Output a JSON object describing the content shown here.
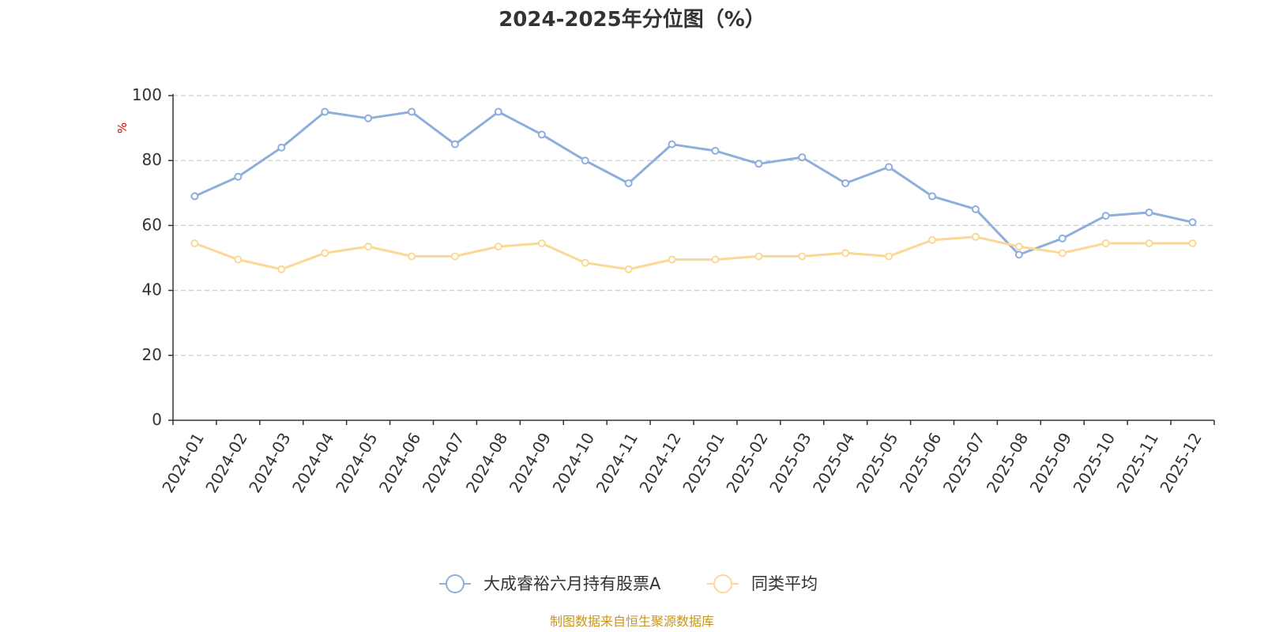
{
  "chart_data": {
    "type": "line",
    "title": "2024-2025年分位图（%）",
    "xlabel": "",
    "ylabel": "%",
    "ylim": [
      0,
      100
    ],
    "yticks": [
      0,
      20,
      40,
      60,
      80,
      100
    ],
    "grid": true,
    "legend_position": "bottom-center",
    "categories": [
      "2024-01",
      "2024-02",
      "2024-03",
      "2024-04",
      "2024-05",
      "2024-06",
      "2024-07",
      "2024-08",
      "2024-09",
      "2024-10",
      "2024-11",
      "2024-12",
      "2025-01",
      "2025-02",
      "2025-03",
      "2025-04",
      "2025-05",
      "2025-06",
      "2025-07",
      "2025-08",
      "2025-09",
      "2025-10",
      "2025-11",
      "2025-12"
    ],
    "series": [
      {
        "name": "大成睿裕六月持有股票A",
        "color": "#8eaedb",
        "values": [
          69,
          75,
          84,
          95,
          93,
          95,
          85,
          95,
          88,
          80,
          73,
          85,
          83,
          79,
          81,
          73,
          78,
          69,
          65,
          51,
          56,
          63,
          64,
          61
        ]
      },
      {
        "name": "同类平均",
        "color": "#fbd896",
        "values": [
          54.5,
          49.5,
          46.5,
          51.5,
          53.5,
          50.5,
          50.5,
          53.5,
          54.5,
          48.5,
          46.5,
          49.5,
          49.5,
          50.5,
          50.5,
          51.5,
          50.5,
          55.5,
          56.5,
          53.5,
          51.5,
          54.5,
          54.5,
          54.5
        ]
      }
    ]
  },
  "source": "制图数据来自恒生聚源数据库",
  "colors": {
    "axis": "#333333",
    "grid": "#cccccc",
    "ylabel": "#e00000",
    "source": "#c8961e",
    "text": "#333333"
  }
}
